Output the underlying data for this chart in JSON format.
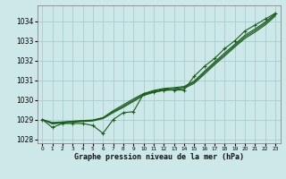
{
  "xlabel": "Graphe pression niveau de la mer (hPa)",
  "xlim": [
    -0.5,
    23.5
  ],
  "ylim": [
    1027.8,
    1034.8
  ],
  "yticks": [
    1028,
    1029,
    1030,
    1031,
    1032,
    1033,
    1034
  ],
  "xticks": [
    0,
    1,
    2,
    3,
    4,
    5,
    6,
    7,
    8,
    9,
    10,
    11,
    12,
    13,
    14,
    15,
    16,
    17,
    18,
    19,
    20,
    21,
    22,
    23
  ],
  "background_color": "#cce8e8",
  "grid_color": "#aacccc",
  "line_color": "#1a5c1a",
  "measured": [
    1029.0,
    1028.6,
    1028.8,
    1028.8,
    1028.8,
    1028.7,
    1028.3,
    1029.0,
    1029.35,
    1029.4,
    1030.3,
    1030.4,
    1030.5,
    1030.5,
    1030.5,
    1031.2,
    1031.7,
    1032.1,
    1032.6,
    1033.0,
    1033.5,
    1033.8,
    1034.1,
    1034.4
  ],
  "smooth1": [
    1029.0,
    1028.85,
    1028.88,
    1028.92,
    1028.95,
    1028.98,
    1029.1,
    1029.45,
    1029.75,
    1030.05,
    1030.32,
    1030.48,
    1030.58,
    1030.62,
    1030.68,
    1030.95,
    1031.45,
    1031.92,
    1032.38,
    1032.82,
    1033.28,
    1033.6,
    1033.95,
    1034.38
  ],
  "smooth2": [
    1029.0,
    1028.82,
    1028.86,
    1028.9,
    1028.93,
    1028.96,
    1029.08,
    1029.4,
    1029.68,
    1029.98,
    1030.28,
    1030.44,
    1030.54,
    1030.58,
    1030.64,
    1030.9,
    1031.38,
    1031.85,
    1032.3,
    1032.75,
    1033.2,
    1033.52,
    1033.88,
    1034.32
  ],
  "smooth3": [
    1029.0,
    1028.78,
    1028.82,
    1028.86,
    1028.9,
    1028.93,
    1029.05,
    1029.35,
    1029.62,
    1029.92,
    1030.22,
    1030.38,
    1030.48,
    1030.52,
    1030.58,
    1030.84,
    1031.3,
    1031.78,
    1032.22,
    1032.68,
    1033.12,
    1033.44,
    1033.8,
    1034.25
  ]
}
